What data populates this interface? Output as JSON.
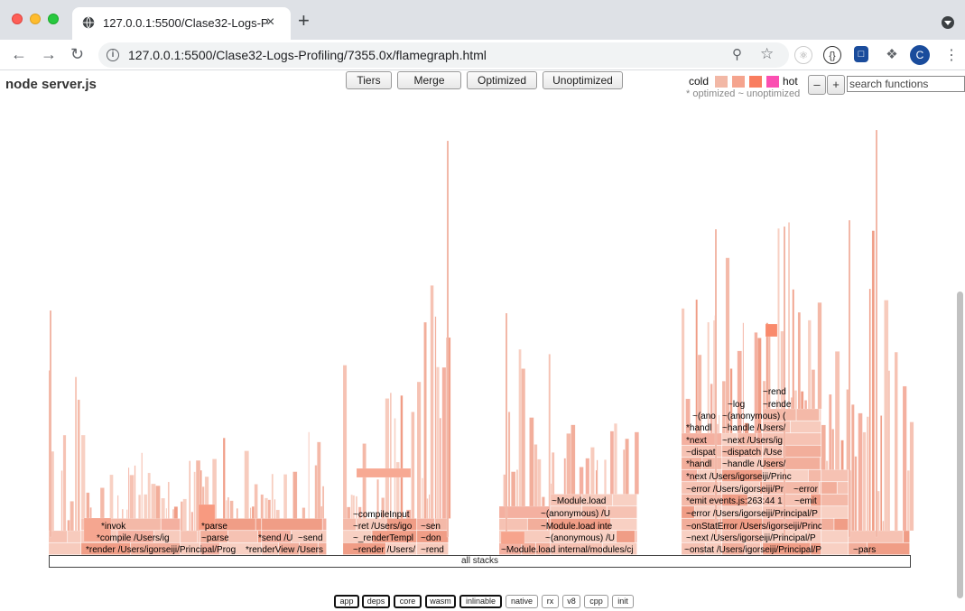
{
  "browser": {
    "tab_title": "127.0.0.1:5500/Clase32-Logs-P",
    "tab_close": "×",
    "new_tab": "+",
    "url": "127.0.0.1:5500/Clase32-Logs-Profiling/7355.0x/flamegraph.html",
    "avatar_letter": "C"
  },
  "header": {
    "title": "node server.js",
    "legend_cold": "cold",
    "legend_hot": "hot",
    "legend_colors": [
      "#f2b8a6",
      "#f5a48e",
      "#f97d5f",
      "#fb4fb1"
    ],
    "subtitle": "* optimized ~ unoptimized",
    "zoom_out": "–",
    "zoom_in": "+",
    "search_placeholder": "search functions"
  },
  "flamegraph": {
    "root_label": "all stacks",
    "labels": [
      "*invok",
      "*compile /Users/ig",
      "*render /Users/igorseiji/Principal/Prog",
      "*parse",
      "~parse",
      "*renderView /Users",
      "*send /U",
      "~send",
      "~compileInput",
      "~ret /Users/igo",
      "~_renderTempl",
      "~render /Users/",
      "~sen",
      "~don",
      "~rend",
      "~Module.load",
      "~(anonymous) /U",
      "~Module.load inte",
      "~(anonymous) /U",
      "~Module.load internal/modules/cj",
      "~(ano",
      "*handl",
      "*next",
      "~dispat",
      "*handl",
      "*next /Users/igorseiji/Princ",
      "~error /Users/igorseiji/Pr",
      "*emit events.js:263:44 1",
      "~error /Users/igorseiji/Principal/P",
      "~onStatError /Users/igorseiji/Princ",
      "~next /Users/igorseiji/Principal/P",
      "~onstat /Users/igorseiji/Principal/P",
      "~log",
      "~(anonymous) (",
      "~handle /Users/",
      "~next /Users/ig",
      "~dispatch /Use",
      "~handle /Users/",
      "~rend",
      "~rende",
      "~error",
      "~emit",
      "~pars"
    ]
  },
  "buttons": {
    "tiers": "Tiers",
    "merge": "Merge",
    "optimized": "Optimized",
    "unoptimized": "Unoptimized"
  },
  "filters": [
    "app",
    "deps",
    "core",
    "wasm",
    "inlinable",
    "native",
    "rx",
    "v8",
    "cpp",
    "init"
  ]
}
